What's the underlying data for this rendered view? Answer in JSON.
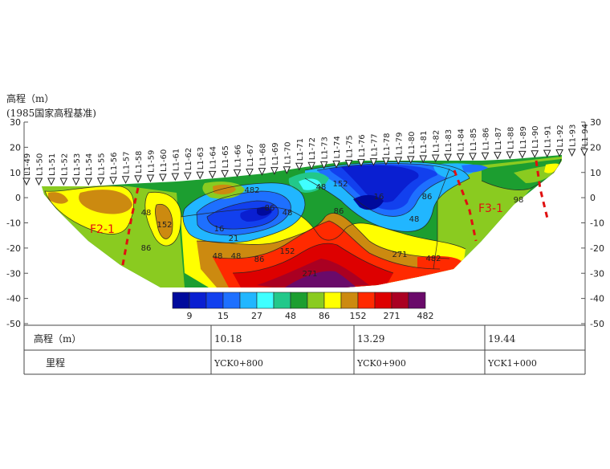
{
  "header": {
    "ylabel_line1": "高程（m）",
    "ylabel_line2": "(1985国家高程基准)"
  },
  "axis": {
    "ticks": [
      30,
      20,
      10,
      0,
      -10,
      -20,
      -30,
      -40,
      -50
    ],
    "range": [
      -50,
      30
    ]
  },
  "stations": [
    "L1-49",
    "L1-50",
    "L1-51",
    "L1-52",
    "L1-53",
    "L1-54",
    "L1-55",
    "L1-56",
    "L1-57",
    "L1-58",
    "L1-59",
    "L1-60",
    "L1-61",
    "L1-62",
    "L1-63",
    "L1-64",
    "L1-65",
    "L1-66",
    "L1-67",
    "L1-68",
    "L1-69",
    "L1-70",
    "L1-71",
    "L1-72",
    "L1-73",
    "L1-74",
    "L1-75",
    "L1-76",
    "L1-77",
    "L1-78",
    "L1-79",
    "L1-80",
    "L1-81",
    "L1-82",
    "L1-83",
    "L1-84",
    "L1-85",
    "L1-86",
    "L1-87",
    "L1-88",
    "L1-89",
    "L1-90",
    "L1-91",
    "L1-92",
    "L1-93",
    "L1-94"
  ],
  "faults": [
    {
      "label": "F2-1"
    },
    {
      "label": "F3-1"
    }
  ],
  "contour_labels": [
    "48",
    "152",
    "86",
    "48",
    "16",
    "21",
    "48",
    "86",
    "152",
    "271",
    "482",
    "48",
    "86",
    "48",
    "152",
    "271",
    "482",
    "86",
    "48",
    "86",
    "98",
    "16"
  ],
  "colorbar": {
    "colors": [
      "#000a9c",
      "#0a1fd1",
      "#1240ee",
      "#1e70ff",
      "#21b6ff",
      "#40ffff",
      "#22c88a",
      "#1c9e30",
      "#8acb20",
      "#ffff00",
      "#cc8a10",
      "#ff2a00",
      "#dd0000",
      "#aa0022",
      "#6a0a6a"
    ],
    "labels": [
      "9",
      "15",
      "27",
      "48",
      "86",
      "152",
      "271",
      "482"
    ]
  },
  "table": {
    "rows": [
      {
        "head": "高程（m）",
        "cells": [
          "10.18",
          "13.29",
          "19.44"
        ]
      },
      {
        "head": "里程",
        "cells": [
          "YCK0+800",
          "YCK0+900",
          "YCK1+000"
        ]
      }
    ]
  }
}
